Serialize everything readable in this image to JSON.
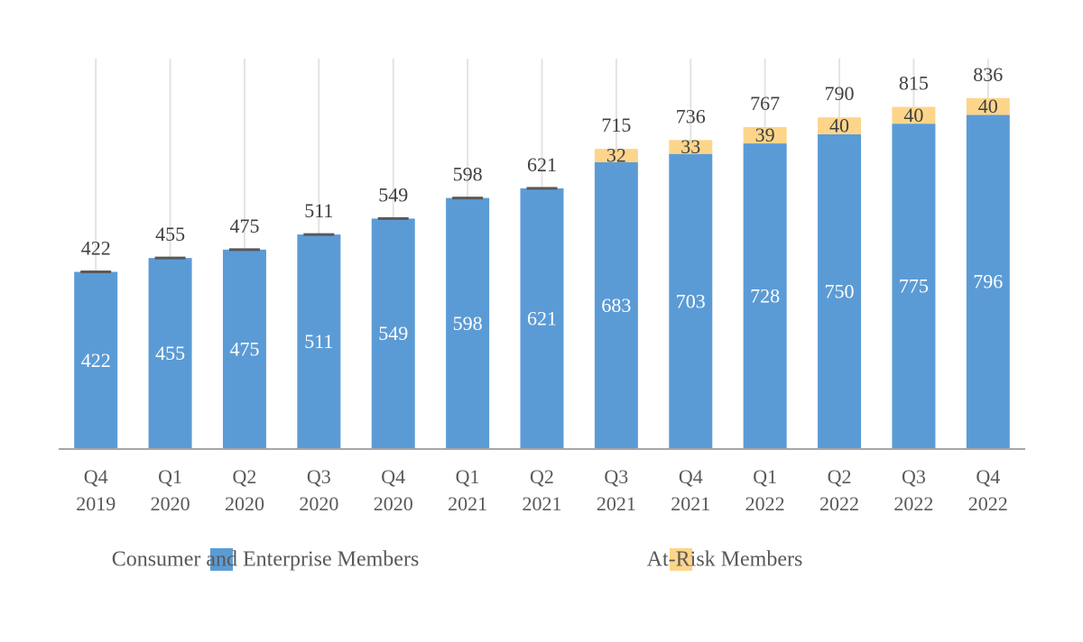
{
  "chart_data": {
    "type": "stacked_bar",
    "categories": [
      "Q4 2019",
      "Q1 2020",
      "Q2 2020",
      "Q3 2020",
      "Q4 2020",
      "Q1 2021",
      "Q2 2021",
      "Q3 2021",
      "Q4 2021",
      "Q1 2022",
      "Q2 2022",
      "Q3 2022",
      "Q4 2022"
    ],
    "series": [
      {
        "name": "Consumer and Enterprise Members",
        "color": "#5b9bd5",
        "values": [
          422,
          455,
          475,
          511,
          549,
          598,
          621,
          683,
          703,
          728,
          750,
          775,
          796
        ]
      },
      {
        "name": "At-Risk Members",
        "color": "#fdd58a",
        "values": [
          null,
          null,
          null,
          null,
          null,
          null,
          null,
          32,
          33,
          39,
          40,
          40,
          40
        ]
      }
    ],
    "totals": [
      422,
      455,
      475,
      511,
      549,
      598,
      621,
      715,
      736,
      767,
      790,
      815,
      836
    ],
    "ylim": [
      0,
      930
    ],
    "grid": true
  }
}
